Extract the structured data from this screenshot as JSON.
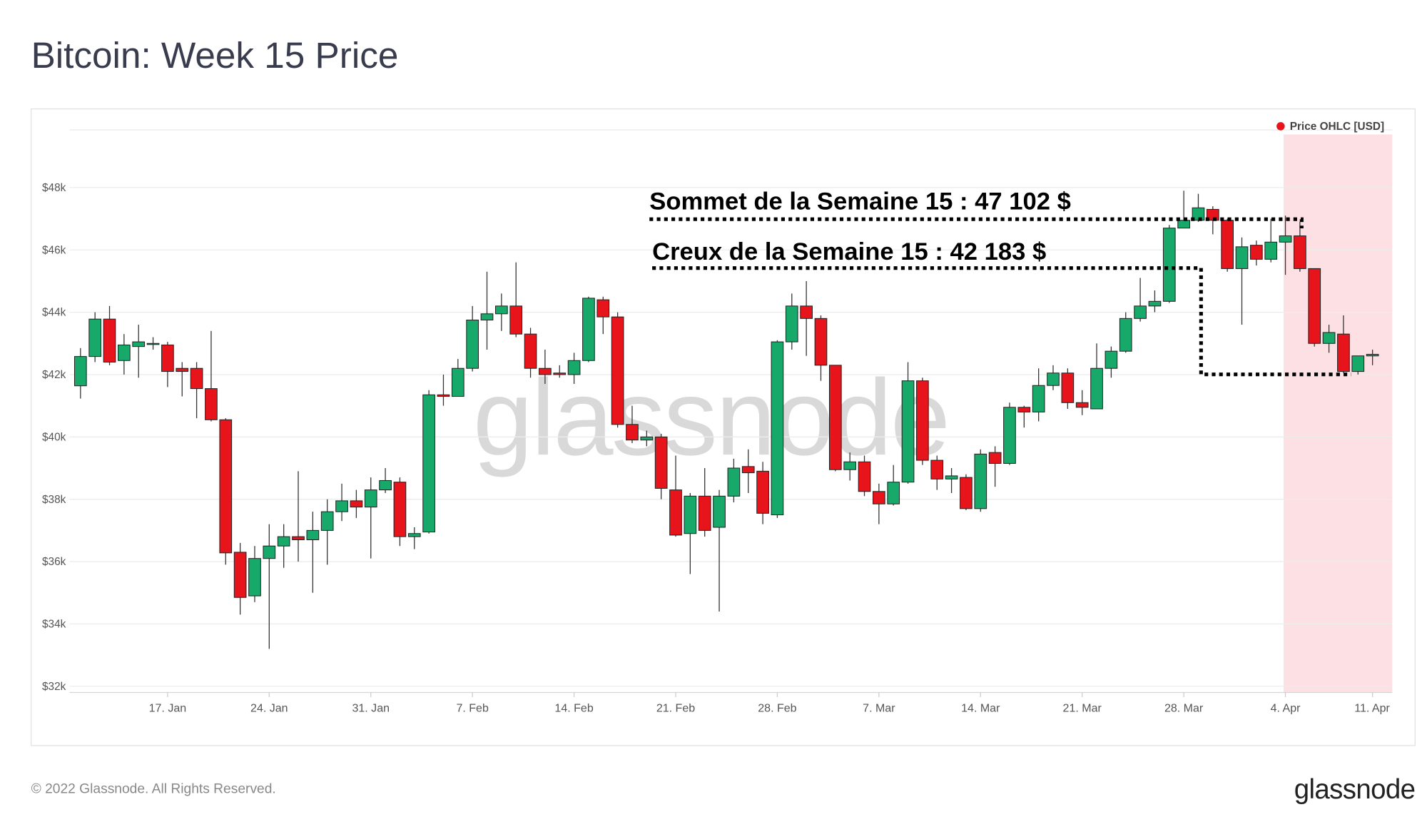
{
  "title": "Bitcoin: Week 15 Price",
  "footer": "© 2022 Glassnode. All Rights Reserved.",
  "logo": "glassnode",
  "watermark": "glassnode",
  "chart_data": {
    "type": "candlestick",
    "legend": "top-right",
    "grid": true,
    "up_color": "#16a96a",
    "down_color": "#e8141b",
    "highlight_color": "#fde0e3",
    "categories": [
      null,
      null,
      null,
      null,
      null,
      null,
      "17. Jan",
      null,
      null,
      null,
      null,
      null,
      null,
      "24. Jan",
      null,
      null,
      null,
      null,
      null,
      null,
      "31. Jan",
      null,
      null,
      null,
      null,
      null,
      null,
      "7. Feb",
      null,
      null,
      null,
      null,
      null,
      null,
      "14. Feb",
      null,
      null,
      null,
      null,
      null,
      null,
      "21. Feb",
      null,
      null,
      null,
      null,
      null,
      null,
      "28. Feb",
      null,
      null,
      null,
      null,
      null,
      null,
      "7. Mar",
      null,
      null,
      null,
      null,
      null,
      null,
      "14. Mar",
      null,
      null,
      null,
      null,
      null,
      null,
      "21. Mar",
      null,
      null,
      null,
      null,
      null,
      null,
      "28. Mar",
      null,
      null,
      null,
      null,
      null,
      null,
      "4. Apr",
      null,
      null,
      null,
      null,
      null,
      "11. Apr"
    ],
    "series": [
      {
        "name": "Price OHLC [USD]",
        "color": "#e8141b",
        "open": [
          41640,
          42580,
          43780,
          42450,
          42900,
          42980,
          42950,
          42200,
          42200,
          41550,
          40550,
          36300,
          34900,
          36100,
          36500,
          36800,
          36700,
          37000,
          37600,
          37950,
          37750,
          38300,
          38550,
          36800,
          36950,
          41350,
          41300,
          42200,
          43750,
          43950,
          44200,
          43300,
          42200,
          42050,
          42000,
          42450,
          44400,
          43850,
          40400,
          39900,
          40000,
          38300,
          36900,
          38100,
          37100,
          38100,
          39050,
          38900,
          37500,
          43050,
          44200,
          43800,
          42300,
          38950,
          39200,
          38250,
          37850,
          38550,
          41800,
          39250,
          38650,
          38700,
          37700,
          39500,
          39150,
          40950,
          40800,
          41650,
          42050,
          41100,
          40900,
          42200,
          42750,
          43800,
          44200,
          44350,
          46700,
          46950,
          47300,
          46950,
          45400,
          46150,
          45700,
          46250,
          46450,
          45400,
          43000,
          43300,
          42100,
          42600
        ],
        "high": [
          42850,
          44000,
          44200,
          43300,
          43600,
          43200,
          43050,
          42400,
          42400,
          43400,
          40600,
          36600,
          36500,
          37200,
          37200,
          38900,
          37600,
          38000,
          38500,
          38300,
          38700,
          39000,
          38700,
          37100,
          41500,
          42000,
          42500,
          44200,
          45300,
          44600,
          45600,
          43500,
          42800,
          42300,
          42700,
          44500,
          44500,
          44000,
          41000,
          40200,
          40100,
          39400,
          38200,
          39000,
          38300,
          39300,
          39600,
          39200,
          43100,
          44600,
          45000,
          43900,
          42300,
          39500,
          39400,
          38500,
          39100,
          42400,
          41900,
          39400,
          39000,
          38800,
          39600,
          39700,
          41100,
          41000,
          42200,
          42300,
          42200,
          41500,
          43000,
          42900,
          44000,
          45100,
          44700,
          46800,
          47900,
          47800,
          47400,
          47000,
          46400,
          46300,
          47000,
          47100,
          46900,
          45400,
          43600,
          43900,
          42600,
          42800
        ],
        "low": [
          41230,
          42400,
          42300,
          42000,
          41900,
          42800,
          41600,
          41300,
          40600,
          40500,
          35900,
          34300,
          34700,
          33200,
          35800,
          36000,
          35000,
          35900,
          37300,
          37400,
          36100,
          38200,
          36500,
          36400,
          36900,
          41000,
          41300,
          42100,
          42800,
          43400,
          43200,
          41900,
          41700,
          41900,
          41700,
          42400,
          43300,
          40300,
          39800,
          39700,
          38000,
          36800,
          35600,
          36800,
          34400,
          37900,
          38200,
          37200,
          37400,
          42800,
          42600,
          41800,
          38900,
          38600,
          38100,
          37200,
          37800,
          38500,
          39100,
          38300,
          38200,
          37650,
          37600,
          38400,
          39100,
          40300,
          40500,
          41500,
          40900,
          40700,
          40900,
          41900,
          42700,
          43700,
          44000,
          44300,
          46700,
          46900,
          46500,
          45300,
          43600,
          45500,
          45600,
          45200,
          45300,
          42900,
          42700,
          42050,
          42000,
          42300
        ],
        "close": [
          42580,
          43780,
          42400,
          42950,
          43050,
          43000,
          42100,
          42100,
          41550,
          40550,
          36280,
          34850,
          36100,
          36500,
          36800,
          36700,
          37000,
          37600,
          37950,
          37750,
          38300,
          38600,
          36800,
          36900,
          41350,
          41300,
          42200,
          43750,
          43950,
          44200,
          43300,
          42200,
          42000,
          42000,
          42450,
          44450,
          43850,
          40400,
          39900,
          40000,
          38350,
          36850,
          38100,
          37000,
          38100,
          39000,
          38850,
          37550,
          43050,
          44200,
          43800,
          42300,
          38950,
          39200,
          38250,
          37850,
          38550,
          41800,
          39250,
          38650,
          38750,
          37700,
          39450,
          39150,
          40950,
          40800,
          41650,
          42050,
          41100,
          40950,
          42200,
          42750,
          43800,
          44200,
          44350,
          46700,
          46950,
          47350,
          46950,
          45400,
          46100,
          45700,
          46250,
          46450,
          45400,
          43000,
          43350,
          42100,
          42600,
          42650
        ]
      }
    ],
    "ylim": [
      31800,
      49850
    ],
    "yticks": [
      {
        "value": 32000,
        "label": "$32k"
      },
      {
        "value": 34000,
        "label": "$34k"
      },
      {
        "value": 36000,
        "label": "$36k"
      },
      {
        "value": 38000,
        "label": "$38k"
      },
      {
        "value": 40000,
        "label": "$40k"
      },
      {
        "value": 42000,
        "label": "$42k"
      },
      {
        "value": 44000,
        "label": "$44k"
      },
      {
        "value": 46000,
        "label": "$46k"
      },
      {
        "value": 48000,
        "label": "$48k"
      }
    ],
    "annotations": [
      {
        "text": "Sommet de la Semaine 15 : 47 102 $",
        "value": 47102
      },
      {
        "text": "Creux de la Semaine 15 : 42 183 $",
        "value": 42183
      }
    ]
  }
}
